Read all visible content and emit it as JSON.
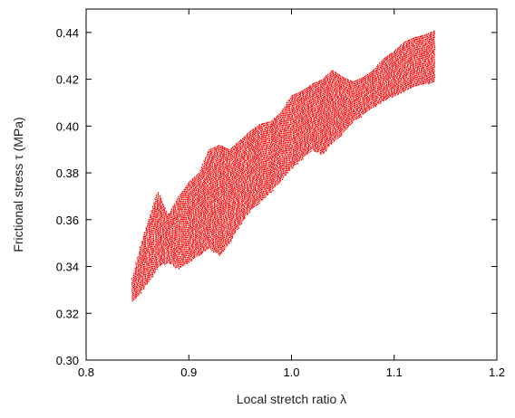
{
  "chart_data": {
    "type": "scatter",
    "title": "",
    "xlabel": "Local stretch ratio λ",
    "ylabel": "Frictional stress τ (MPa)",
    "xlim": [
      0.8,
      1.2
    ],
    "ylim": [
      0.3,
      0.45
    ],
    "x_ticks": [
      "0.8",
      "0.9",
      "1.0",
      "1.1",
      "1.2"
    ],
    "y_ticks": [
      "0.30",
      "0.32",
      "0.34",
      "0.36",
      "0.38",
      "0.40",
      "0.42",
      "0.44"
    ],
    "x_tick_values": [
      0.8,
      0.9,
      1.0,
      1.1,
      1.2
    ],
    "y_tick_values": [
      0.3,
      0.32,
      0.34,
      0.36,
      0.38,
      0.4,
      0.42,
      0.44
    ],
    "grid": false,
    "series_color": "#ff0000",
    "band_upper": [
      {
        "x": 0.845,
        "y": 0.335
      },
      {
        "x": 0.855,
        "y": 0.352
      },
      {
        "x": 0.865,
        "y": 0.366
      },
      {
        "x": 0.87,
        "y": 0.372
      },
      {
        "x": 0.88,
        "y": 0.362
      },
      {
        "x": 0.89,
        "y": 0.37
      },
      {
        "x": 0.9,
        "y": 0.376
      },
      {
        "x": 0.91,
        "y": 0.38
      },
      {
        "x": 0.92,
        "y": 0.39
      },
      {
        "x": 0.93,
        "y": 0.392
      },
      {
        "x": 0.94,
        "y": 0.39
      },
      {
        "x": 0.95,
        "y": 0.394
      },
      {
        "x": 0.96,
        "y": 0.398
      },
      {
        "x": 0.97,
        "y": 0.401
      },
      {
        "x": 0.98,
        "y": 0.402
      },
      {
        "x": 0.99,
        "y": 0.406
      },
      {
        "x": 1.0,
        "y": 0.413
      },
      {
        "x": 1.01,
        "y": 0.415
      },
      {
        "x": 1.02,
        "y": 0.418
      },
      {
        "x": 1.03,
        "y": 0.42
      },
      {
        "x": 1.04,
        "y": 0.424
      },
      {
        "x": 1.05,
        "y": 0.421
      },
      {
        "x": 1.06,
        "y": 0.419
      },
      {
        "x": 1.07,
        "y": 0.421
      },
      {
        "x": 1.08,
        "y": 0.424
      },
      {
        "x": 1.09,
        "y": 0.429
      },
      {
        "x": 1.1,
        "y": 0.432
      },
      {
        "x": 1.11,
        "y": 0.436
      },
      {
        "x": 1.12,
        "y": 0.438
      },
      {
        "x": 1.13,
        "y": 0.439
      },
      {
        "x": 1.14,
        "y": 0.441
      }
    ],
    "band_lower": [
      {
        "x": 0.845,
        "y": 0.325
      },
      {
        "x": 0.855,
        "y": 0.33
      },
      {
        "x": 0.865,
        "y": 0.336
      },
      {
        "x": 0.87,
        "y": 0.34
      },
      {
        "x": 0.88,
        "y": 0.342
      },
      {
        "x": 0.89,
        "y": 0.339
      },
      {
        "x": 0.9,
        "y": 0.342
      },
      {
        "x": 0.91,
        "y": 0.345
      },
      {
        "x": 0.92,
        "y": 0.348
      },
      {
        "x": 0.93,
        "y": 0.345
      },
      {
        "x": 0.94,
        "y": 0.35
      },
      {
        "x": 0.95,
        "y": 0.358
      },
      {
        "x": 0.96,
        "y": 0.364
      },
      {
        "x": 0.97,
        "y": 0.368
      },
      {
        "x": 0.98,
        "y": 0.372
      },
      {
        "x": 0.99,
        "y": 0.377
      },
      {
        "x": 1.0,
        "y": 0.382
      },
      {
        "x": 1.01,
        "y": 0.386
      },
      {
        "x": 1.02,
        "y": 0.39
      },
      {
        "x": 1.03,
        "y": 0.388
      },
      {
        "x": 1.04,
        "y": 0.393
      },
      {
        "x": 1.05,
        "y": 0.397
      },
      {
        "x": 1.06,
        "y": 0.402
      },
      {
        "x": 1.07,
        "y": 0.405
      },
      {
        "x": 1.08,
        "y": 0.408
      },
      {
        "x": 1.09,
        "y": 0.411
      },
      {
        "x": 1.1,
        "y": 0.413
      },
      {
        "x": 1.11,
        "y": 0.415
      },
      {
        "x": 1.12,
        "y": 0.417
      },
      {
        "x": 1.13,
        "y": 0.418
      },
      {
        "x": 1.14,
        "y": 0.419
      }
    ]
  }
}
